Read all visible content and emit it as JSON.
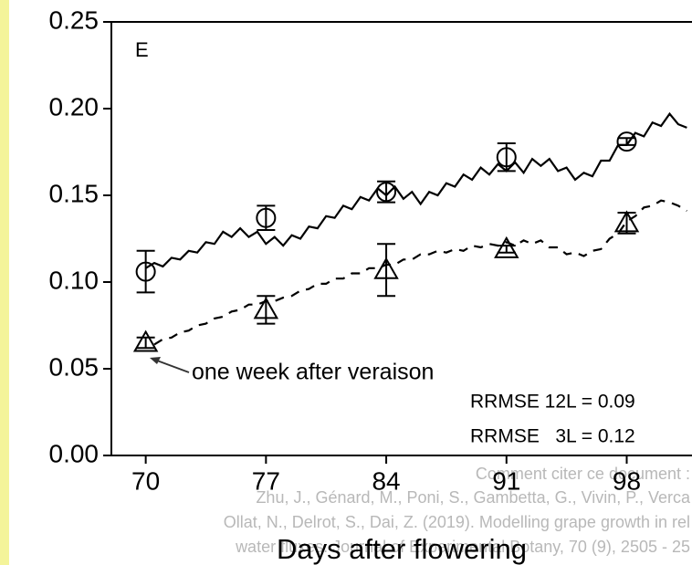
{
  "chart_data": {
    "type": "line",
    "panel_label": "E",
    "x_label": "Days after flowering",
    "annotation": "one week after veraison",
    "stats": [
      "RRMSE 12L = 0.09",
      "RRMSE   3L = 0.12"
    ],
    "xlim": [
      68,
      101.8
    ],
    "ylim": [
      0,
      0.25
    ],
    "xticks": [
      70,
      77,
      84,
      91,
      98
    ],
    "yticks": [
      {
        "value": 0,
        "label": "0.00"
      },
      0.05,
      {
        "value": 0.1,
        "label": "0.10"
      },
      0.15,
      {
        "value": 0.2,
        "label": "0.20"
      },
      0.25
    ],
    "x": [
      70,
      70.5,
      71,
      71.5,
      72,
      72.5,
      73,
      73.5,
      74,
      74.5,
      75,
      75.5,
      76,
      76.5,
      77,
      77.5,
      78,
      78.5,
      79,
      79.5,
      80,
      80.5,
      81,
      81.5,
      82,
      82.5,
      83,
      83.5,
      84,
      84.5,
      85,
      85.5,
      86,
      86.5,
      87,
      87.5,
      88,
      88.5,
      89,
      89.5,
      90,
      90.5,
      91,
      91.5,
      92,
      92.5,
      93,
      93.5,
      94,
      94.5,
      95,
      95.5,
      96,
      96.5,
      97,
      97.5,
      98,
      98.5,
      99,
      99.5,
      100,
      100.5,
      101,
      101.5
    ],
    "series": [
      {
        "style": "solid",
        "color": "#000000",
        "values": [
          0.108,
          0.111,
          0.109,
          0.114,
          0.113,
          0.118,
          0.117,
          0.123,
          0.122,
          0.129,
          0.126,
          0.131,
          0.126,
          0.129,
          0.122,
          0.126,
          0.121,
          0.127,
          0.125,
          0.132,
          0.131,
          0.138,
          0.137,
          0.144,
          0.142,
          0.149,
          0.147,
          0.154,
          0.15,
          0.155,
          0.148,
          0.152,
          0.145,
          0.152,
          0.15,
          0.157,
          0.155,
          0.162,
          0.159,
          0.166,
          0.162,
          0.168,
          0.164,
          0.169,
          0.163,
          0.171,
          0.167,
          0.171,
          0.164,
          0.166,
          0.159,
          0.163,
          0.161,
          0.17,
          0.17,
          0.179,
          0.179,
          0.186,
          0.184,
          0.192,
          0.19,
          0.197,
          0.191,
          0.189
        ]
      },
      {
        "style": "dashed",
        "color": "#000000",
        "values": [
          null,
          0.064,
          0.067,
          0.068,
          0.071,
          0.072,
          0.075,
          0.076,
          0.079,
          0.08,
          0.083,
          0.084,
          0.087,
          0.087,
          0.089,
          0.089,
          0.091,
          0.092,
          0.095,
          0.096,
          0.099,
          0.099,
          0.102,
          0.102,
          0.105,
          0.105,
          0.108,
          0.108,
          0.11,
          0.11,
          0.113,
          0.113,
          0.116,
          0.116,
          0.118,
          0.117,
          0.119,
          0.118,
          0.121,
          0.12,
          0.122,
          0.121,
          0.123,
          0.121,
          0.124,
          0.122,
          0.124,
          0.12,
          0.12,
          0.116,
          0.117,
          0.115,
          0.118,
          0.119,
          0.125,
          0.128,
          0.135,
          0.138,
          0.143,
          0.144,
          0.147,
          0.146,
          0.144,
          0.141
        ]
      }
    ],
    "observations": [
      {
        "marker": "circle",
        "x": [
          70,
          77,
          84,
          91,
          98
        ],
        "values": [
          0.106,
          0.137,
          0.152,
          0.172,
          0.181
        ],
        "errors": [
          0.012,
          0.007,
          0.006,
          0.008,
          0.002
        ]
      },
      {
        "marker": "triangle",
        "x": [
          70,
          77,
          84,
          91,
          98
        ],
        "values": [
          0.065,
          0.084,
          0.107,
          0.119,
          0.134
        ],
        "errors": [
          0.003,
          0.008,
          0.015,
          0.002,
          0.006
        ]
      }
    ]
  },
  "watermark": [
    "Comment citer ce document :",
    "Zhu, J., Génard, M., Poni, S., Gambetta, G., Vivin, P., Verca",
    "Ollat, N., Delrot, S., Dai, Z. (2019). Modelling grape growth in rel",
    "water fluxes. Journal of Experimental Botany, 70 (9), 2505 - 25"
  ]
}
